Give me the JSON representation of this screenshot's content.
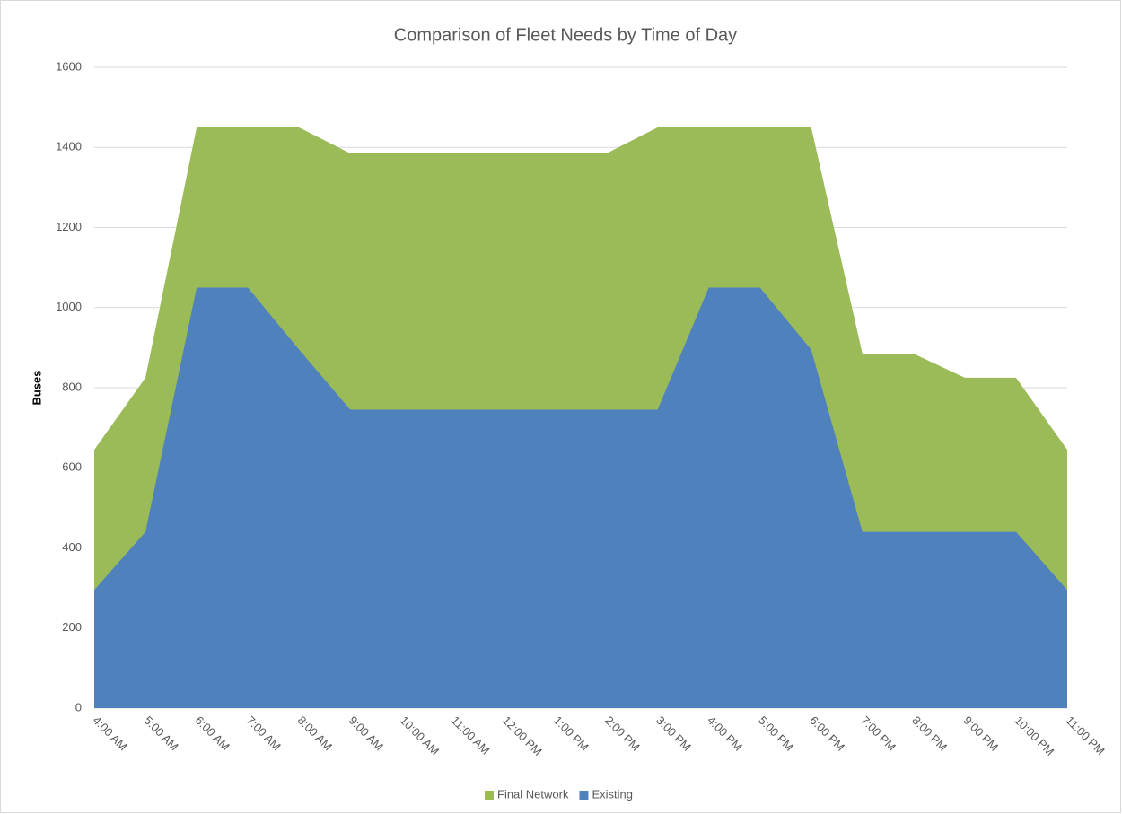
{
  "chart_data": {
    "type": "area",
    "title": "Comparison of Fleet Needs by Time of Day",
    "y_label": "Buses",
    "categories": [
      "4:00 AM",
      "5:00 AM",
      "6:00 AM",
      "7:00 AM",
      "8:00 AM",
      "9:00 AM",
      "10:00 AM",
      "11:00 AM",
      "12:00 PM",
      "1:00 PM",
      "2:00 PM",
      "3:00 PM",
      "4:00 PM",
      "5:00 PM",
      "6:00 PM",
      "7:00 PM",
      "8:00 PM",
      "9:00 PM",
      "10:00 PM",
      "11:00 PM"
    ],
    "series": [
      {
        "name": "Final Network",
        "color": "#9bbb59",
        "values": [
          645,
          825,
          1450,
          1450,
          1450,
          1385,
          1385,
          1385,
          1385,
          1385,
          1385,
          1450,
          1450,
          1450,
          1450,
          885,
          885,
          825,
          825,
          645
        ]
      },
      {
        "name": "Existing",
        "color": "#4f81bd",
        "values": [
          295,
          440,
          1050,
          1050,
          895,
          745,
          745,
          745,
          745,
          745,
          745,
          745,
          1050,
          1050,
          895,
          440,
          440,
          440,
          440,
          295
        ]
      }
    ],
    "ylim": [
      0,
      1600
    ],
    "yticks": [
      0,
      200,
      400,
      600,
      800,
      1000,
      1200,
      1400,
      1600
    ],
    "grid": true,
    "legend": "bottom"
  }
}
